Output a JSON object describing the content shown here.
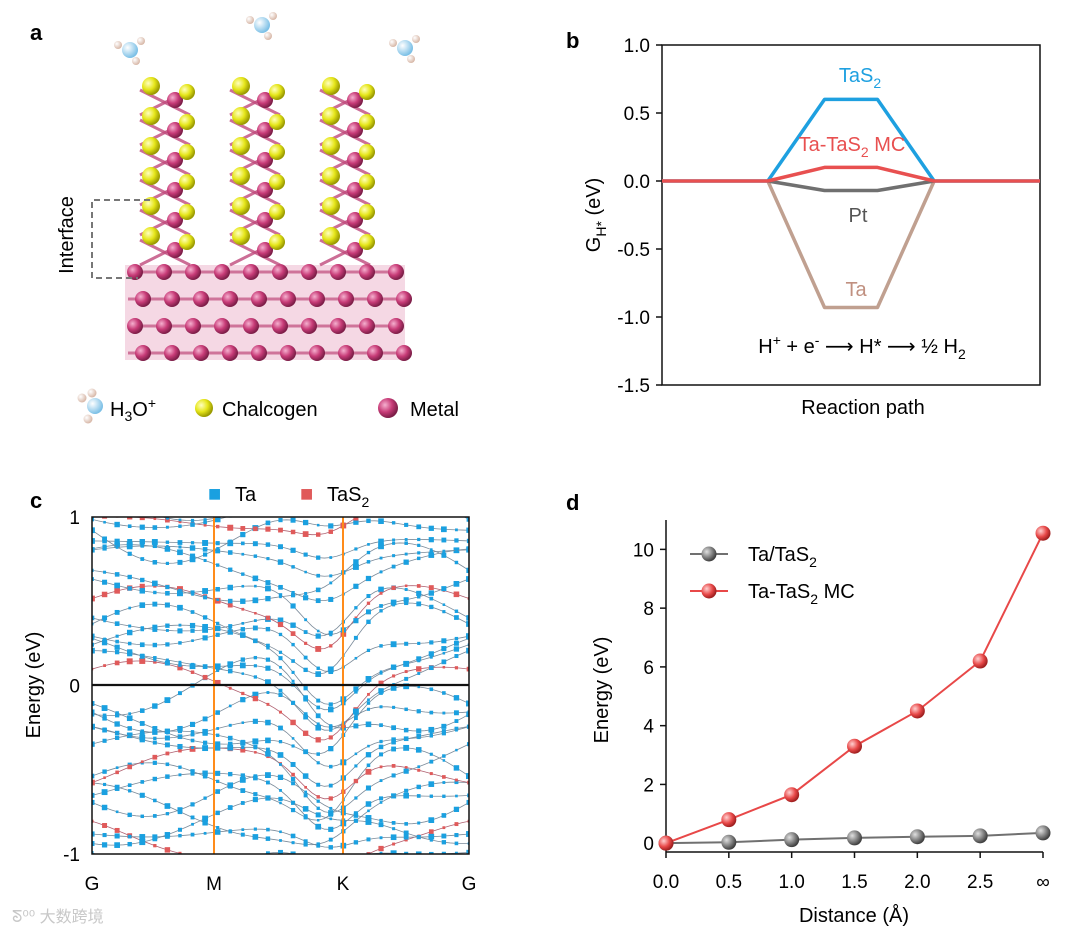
{
  "panel_labels": {
    "a": "a",
    "b": "b",
    "c": "c",
    "d": "d"
  },
  "panel_a": {
    "interface_label": "Interface",
    "legend": [
      {
        "name": "H3O+",
        "text": "H",
        "sub": "3",
        "rest": "O",
        "sup": "+",
        "color": "#a8d8f0"
      },
      {
        "name": "Chalcogen",
        "text": "Chalcogen",
        "color": "#e6e61a"
      },
      {
        "name": "Metal",
        "text": "Metal",
        "color": "#c83c78"
      }
    ]
  },
  "chart_data": [
    {
      "id": "b",
      "type": "line",
      "title": "",
      "xlabel": "Reaction path",
      "ylabel": "G",
      "ylabel_sub": "H*",
      "ylabel_unit": " (eV)",
      "ylim": [
        -1.5,
        1.0
      ],
      "yticks": [
        "1.0",
        "0.5",
        "0.0",
        "-0.5",
        "-1.0",
        "-1.5"
      ],
      "ytick_values": [
        1.0,
        0.5,
        0.0,
        -0.5,
        -1.0,
        -1.5
      ],
      "x_range": [
        0,
        10
      ],
      "reaction_text": {
        "part1": "H",
        "sup1": "+",
        "part2": " + e",
        "sup2": "-",
        "arrow": "⟶",
        "part3": " H* ",
        "part4": " ½ H",
        "sub4": "2"
      },
      "series": [
        {
          "name": "TaS2",
          "label": "TaS",
          "label_sub": "2",
          "label_rest": "",
          "color": "#1ea0e0",
          "x": [
            0,
            2.8,
            4.3,
            5.7,
            7.2,
            10
          ],
          "values": [
            0,
            0,
            0.6,
            0.6,
            0,
            0
          ]
        },
        {
          "name": "Ta-TaS2 MC",
          "label": "Ta-TaS",
          "label_sub": "2",
          "label_rest": " MC",
          "color": "#e85050",
          "x": [
            0,
            2.8,
            4.3,
            5.7,
            7.2,
            10
          ],
          "values": [
            0,
            0,
            0.1,
            0.1,
            0,
            0
          ]
        },
        {
          "name": "Pt",
          "label": "Pt",
          "label_sub": "",
          "label_rest": "",
          "color": "#707070",
          "x": [
            2.8,
            4.3,
            5.7,
            7.2
          ],
          "values": [
            0,
            -0.07,
            -0.07,
            0
          ]
        },
        {
          "name": "Ta",
          "label": "Ta",
          "label_sub": "",
          "label_rest": "",
          "color": "#c0a090",
          "x": [
            2.8,
            4.3,
            5.7,
            7.2
          ],
          "values": [
            0,
            -0.93,
            -0.93,
            0
          ]
        }
      ]
    },
    {
      "id": "c",
      "type": "scatter",
      "title": "",
      "xlabel": "",
      "ylabel": "Energy (eV)",
      "ylim": [
        -1,
        1
      ],
      "yticks": [
        "1",
        "0",
        "-1"
      ],
      "ytick_values": [
        1,
        0,
        -1
      ],
      "xticks": [
        "G",
        "M",
        "K",
        "G"
      ],
      "xtick_values": [
        0,
        1,
        2,
        3
      ],
      "legend": [
        {
          "name": "Ta",
          "label": "Ta",
          "label_sub": "",
          "color": "#1aa0e0"
        },
        {
          "name": "TaS2",
          "label": "TaS",
          "label_sub": "2",
          "color": "#e05a5a"
        }
      ],
      "band_notes": "Dense electronic band structure; TaS2 bands near 0.3 and -0.2 eV at K."
    },
    {
      "id": "d",
      "type": "line",
      "title": "",
      "xlabel": "Distance (Å)",
      "ylabel": "Energy (eV)",
      "ylim": [
        -0.3,
        11
      ],
      "xlim": [
        0,
        3
      ],
      "xticks": [
        "0.0",
        "0.5",
        "1.0",
        "1.5",
        "2.0",
        "2.5",
        "∞"
      ],
      "xtick_values": [
        0,
        0.5,
        1.0,
        1.5,
        2.0,
        2.5,
        3.0
      ],
      "yticks": [
        "0",
        "2",
        "4",
        "6",
        "8",
        "10"
      ],
      "ytick_values": [
        0,
        2,
        4,
        6,
        8,
        10
      ],
      "series": [
        {
          "name": "Ta/TaS2",
          "label": "Ta/TaS",
          "label_sub": "2",
          "label_rest": "",
          "color": "#707070",
          "x": [
            0,
            0.5,
            1.0,
            1.5,
            2.0,
            2.5,
            3.0
          ],
          "values": [
            0,
            0.03,
            0.12,
            0.18,
            0.22,
            0.25,
            0.35
          ]
        },
        {
          "name": "Ta-TaS2 MC",
          "label": "Ta-TaS",
          "label_sub": "2",
          "label_rest": " MC",
          "color": "#e84848",
          "x": [
            0,
            0.5,
            1.0,
            1.5,
            2.0,
            2.5,
            3.0
          ],
          "values": [
            0,
            0.8,
            1.65,
            3.3,
            4.5,
            6.2,
            10.55
          ]
        }
      ]
    }
  ],
  "watermark": "大数跨境"
}
